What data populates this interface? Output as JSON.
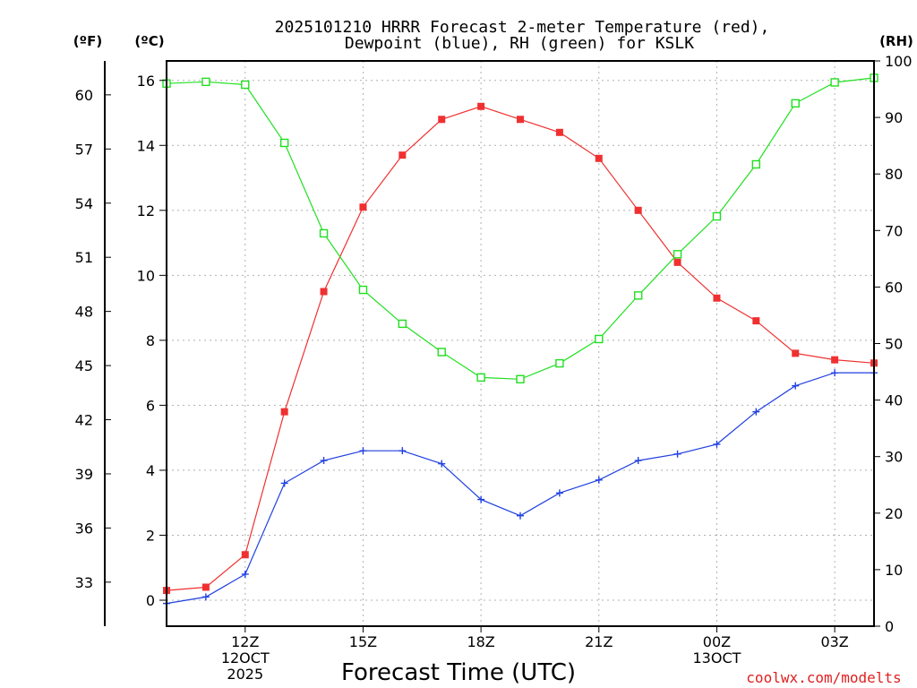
{
  "chart_data": {
    "type": "line",
    "title_line1": "2025101210 HRRR Forecast 2-meter Temperature (red),",
    "title_line2": "Dewpoint (blue), RH (green) for KSLK",
    "xlabel": "Forecast Time (UTC)",
    "credit": "coolwx.com/modelts",
    "left_unit_f": "(ºF)",
    "left_unit_c": "(ºC)",
    "right_unit": "(RH)",
    "x_hours": [
      10,
      11,
      12,
      13,
      14,
      15,
      16,
      17,
      18,
      19,
      20,
      21,
      22,
      23,
      24,
      25,
      26,
      27,
      28
    ],
    "x_range": [
      10,
      28
    ],
    "y_celsius_range": [
      -0.8,
      16.6
    ],
    "y_rh_range": [
      0,
      100
    ],
    "x_ticks": [
      {
        "hour": 12,
        "lines": [
          "12Z",
          "12OCT",
          "2025"
        ]
      },
      {
        "hour": 15,
        "lines": [
          "15Z"
        ]
      },
      {
        "hour": 18,
        "lines": [
          "18Z"
        ]
      },
      {
        "hour": 21,
        "lines": [
          "21Z"
        ]
      },
      {
        "hour": 24,
        "lines": [
          "00Z",
          "13OCT"
        ]
      },
      {
        "hour": 27,
        "lines": [
          "03Z"
        ]
      }
    ],
    "y_ticks_celsius": [
      0,
      2,
      4,
      6,
      8,
      10,
      12,
      14,
      16
    ],
    "y_ticks_fahrenheit": [
      33,
      36,
      39,
      42,
      45,
      48,
      51,
      54,
      57,
      60
    ],
    "y_ticks_rh": [
      0,
      10,
      20,
      30,
      40,
      50,
      60,
      70,
      80,
      90,
      100
    ],
    "series": [
      {
        "name": "Temperature",
        "color": "#f03030",
        "marker": "filled-square",
        "values": [
          0.3,
          0.4,
          1.4,
          5.8,
          9.5,
          12.1,
          13.7,
          14.8,
          15.2,
          14.8,
          14.4,
          13.6,
          12.0,
          10.4,
          9.3,
          8.6,
          7.6,
          7.4,
          7.3
        ]
      },
      {
        "name": "Dewpoint",
        "color": "#2040e0",
        "marker": "plus",
        "values": [
          -0.1,
          0.1,
          0.8,
          3.6,
          4.3,
          4.6,
          4.6,
          4.2,
          3.1,
          2.6,
          3.3,
          3.7,
          4.3,
          4.5,
          4.8,
          5.8,
          6.6,
          7.0,
          7.0
        ]
      },
      {
        "name": "RH",
        "color": "#20e020",
        "marker": "open-square",
        "axis": "rh",
        "values": [
          96,
          96.3,
          95.8,
          85.5,
          69.5,
          59.5,
          53.5,
          48.5,
          44,
          43.7,
          46.5,
          50.8,
          58.5,
          65.8,
          72.5,
          81.7,
          92.5,
          96.2,
          97
        ]
      }
    ]
  }
}
